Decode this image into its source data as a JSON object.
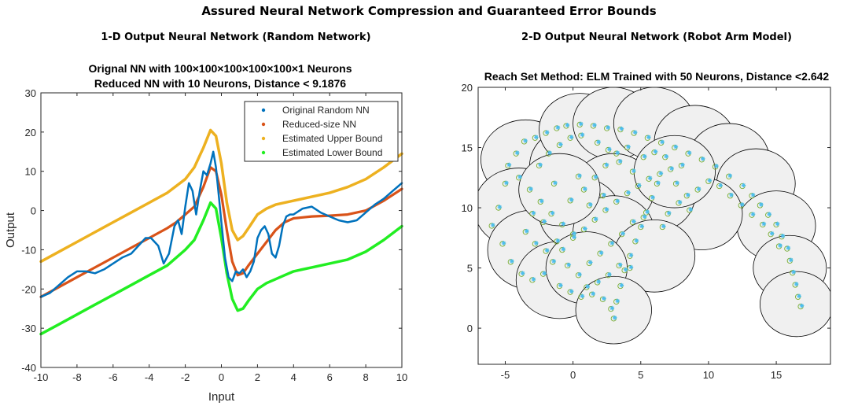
{
  "page": {
    "title": "Assured Neural Network Compression and Guaranteed Error Bounds"
  },
  "panels": [
    {
      "heading": "1-D Output Neural Network (Random Network)",
      "title_line1": "Orignal NN with 100×100×100×100×100×1 Neurons",
      "title_line2": "Reduced NN with 10 Neurons, Distance < 9.1876"
    },
    {
      "heading": "2-D Output Neural Network (Robot Arm Model)",
      "title_line1": "Reach Set Method: ELM Trained with 50 Neurons, Distance <2.642"
    }
  ],
  "chart_data": [
    {
      "type": "line",
      "xlabel": "Input",
      "ylabel": "Output",
      "xlim": [
        -10,
        10
      ],
      "ylim": [
        -40,
        30
      ],
      "xticks": [
        -10,
        -8,
        -6,
        -4,
        -2,
        0,
        2,
        4,
        6,
        8,
        10
      ],
      "yticks": [
        -40,
        -30,
        -20,
        -10,
        0,
        10,
        20,
        30
      ],
      "legend_position": "top-right",
      "colors": {
        "Original Random NN": "#0072BD",
        "Reduced-size NN": "#D95319",
        "Estimated Upper Bound": "#EDB120",
        "Estimated Lower Bound": "#22EE22"
      },
      "series": [
        {
          "name": "Estimated Upper Bound",
          "x": [
            -10,
            -9,
            -8,
            -7,
            -6,
            -5,
            -4,
            -3,
            -2,
            -1.5,
            -1,
            -0.6,
            -0.3,
            0,
            0.3,
            0.6,
            0.9,
            1.2,
            1.5,
            2,
            2.5,
            3,
            3.5,
            4,
            5,
            6,
            7,
            8,
            9,
            10
          ],
          "y": [
            -13,
            -10.5,
            -8,
            -5.5,
            -3,
            -0.5,
            2,
            4.5,
            8,
            11,
            16,
            20.5,
            19,
            12,
            2,
            -5,
            -7.5,
            -6.5,
            -4.5,
            -1,
            0.5,
            1.5,
            2,
            2.5,
            3.5,
            4.5,
            6,
            8,
            11,
            14.5
          ]
        },
        {
          "name": "Estimated Lower Bound",
          "x": [
            -10,
            -9,
            -8,
            -7,
            -6,
            -5,
            -4,
            -3,
            -2,
            -1.5,
            -1,
            -0.6,
            -0.3,
            0,
            0.3,
            0.6,
            0.9,
            1.2,
            1.5,
            2,
            2.5,
            3,
            3.5,
            4,
            5,
            6,
            7,
            8,
            9,
            10
          ],
          "y": [
            -31.5,
            -29,
            -26.5,
            -24,
            -21.5,
            -19,
            -16.5,
            -14,
            -10,
            -7.5,
            -2.5,
            2,
            0.5,
            -7,
            -16,
            -22.5,
            -25.5,
            -25,
            -23,
            -20,
            -18.5,
            -17.5,
            -16.5,
            -15.5,
            -14.5,
            -13.5,
            -12.5,
            -10.5,
            -7.5,
            -4
          ]
        },
        {
          "name": "Reduced-size NN",
          "x": [
            -10,
            -9,
            -8,
            -7,
            -6,
            -5,
            -4,
            -3,
            -2.5,
            -2,
            -1.5,
            -1,
            -0.6,
            -0.3,
            0,
            0.3,
            0.6,
            0.9,
            1.2,
            1.5,
            2,
            2.5,
            3,
            3.5,
            4,
            5,
            6,
            7,
            8,
            9,
            10
          ],
          "y": [
            -22,
            -19.5,
            -17,
            -14.5,
            -12,
            -9.5,
            -7,
            -4.5,
            -3,
            -1,
            1,
            6,
            11,
            10,
            4,
            -5,
            -13,
            -16.5,
            -16,
            -14,
            -11,
            -8,
            -5,
            -3,
            -2,
            -1.5,
            -1.3,
            -1,
            0,
            2.5,
            5.5
          ]
        },
        {
          "name": "Original Random NN",
          "x": [
            -10,
            -9.5,
            -9,
            -8.5,
            -8,
            -7.5,
            -7,
            -6.5,
            -6,
            -5.5,
            -5,
            -4.5,
            -4.2,
            -3.9,
            -3.5,
            -3.2,
            -2.9,
            -2.6,
            -2.4,
            -2.2,
            -2,
            -1.8,
            -1.6,
            -1.4,
            -1.2,
            -1,
            -0.8,
            -0.6,
            -0.45,
            -0.3,
            -0.15,
            0,
            0.2,
            0.4,
            0.6,
            0.8,
            1,
            1.2,
            1.4,
            1.6,
            1.8,
            2,
            2.2,
            2.4,
            2.6,
            2.8,
            3,
            3.2,
            3.4,
            3.6,
            3.8,
            4,
            4.5,
            5,
            5.5,
            6,
            6.5,
            7,
            7.5,
            8,
            8.5,
            9,
            9.5,
            10
          ],
          "y": [
            -22,
            -21,
            -19,
            -17,
            -15.5,
            -15.5,
            -16,
            -15,
            -13.5,
            -12,
            -11,
            -8.5,
            -7,
            -7,
            -9,
            -13.5,
            -11,
            -4,
            -2.5,
            -6,
            1,
            7,
            5,
            -1,
            5,
            10,
            9,
            12,
            15,
            11,
            4,
            -3,
            -12,
            -17,
            -18,
            -15.5,
            -16,
            -15,
            -17,
            -15.5,
            -13,
            -7,
            -5,
            -4,
            -6,
            -11,
            -12,
            -9,
            -4,
            -1.5,
            -1,
            -1,
            0.5,
            1,
            -0.5,
            -1.5,
            -2.5,
            -3,
            -2.5,
            -0.5,
            1.5,
            3,
            5,
            7
          ]
        }
      ]
    },
    {
      "type": "scatter",
      "xlim": [
        -7,
        19
      ],
      "ylim": [
        -3,
        20
      ],
      "xticks": [
        -5,
        0,
        5,
        10,
        15
      ],
      "yticks": [
        0,
        5,
        10,
        15,
        20
      ],
      "colors": {
        "circles_fill": "#F0F0F0",
        "circles_edge": "#000000",
        "samples_edge": "#77AC30",
        "samples_star": "#4DBEEE"
      },
      "reach_set_circles": [
        {
          "x": -3.5,
          "y": 14,
          "r": 3.3
        },
        {
          "x": -4,
          "y": 10,
          "r": 3.3
        },
        {
          "x": -3,
          "y": 6.5,
          "r": 3.3
        },
        {
          "x": -1,
          "y": 4,
          "r": 3.2
        },
        {
          "x": 0,
          "y": 13.5,
          "r": 3.2
        },
        {
          "x": 0.5,
          "y": 16.5,
          "r": 3
        },
        {
          "x": 3,
          "y": 17,
          "r": 3
        },
        {
          "x": 6,
          "y": 17,
          "r": 3
        },
        {
          "x": 9,
          "y": 15.5,
          "r": 3
        },
        {
          "x": 11.5,
          "y": 14,
          "r": 3
        },
        {
          "x": 13.5,
          "y": 12,
          "r": 2.9
        },
        {
          "x": 15,
          "y": 8.5,
          "r": 2.9
        },
        {
          "x": 16,
          "y": 5,
          "r": 2.7
        },
        {
          "x": 16.5,
          "y": 2,
          "r": 2.7
        },
        {
          "x": 9.5,
          "y": 9.5,
          "r": 3
        },
        {
          "x": 6,
          "y": 11,
          "r": 3
        },
        {
          "x": 3,
          "y": 11.5,
          "r": 3
        },
        {
          "x": 0.5,
          "y": 9.5,
          "r": 3
        },
        {
          "x": 3,
          "y": 8,
          "r": 3
        },
        {
          "x": 6,
          "y": 6,
          "r": 3
        },
        {
          "x": 1,
          "y": 5,
          "r": 3
        },
        {
          "x": 3,
          "y": 1.5,
          "r": 2.8
        },
        {
          "x": 7.5,
          "y": 13,
          "r": 3
        },
        {
          "x": -1,
          "y": 11.5,
          "r": 3
        }
      ],
      "sample_points": [
        [
          -6,
          8.5
        ],
        [
          -5.5,
          10
        ],
        [
          -5,
          12
        ],
        [
          -4.8,
          13.5
        ],
        [
          -4.2,
          14.5
        ],
        [
          -3.6,
          15.5
        ],
        [
          -2.8,
          15.8
        ],
        [
          -2,
          16.2
        ],
        [
          -1.2,
          16.6
        ],
        [
          -0.5,
          16.8
        ],
        [
          0.5,
          16.9
        ],
        [
          1.5,
          16.8
        ],
        [
          2.5,
          16.6
        ],
        [
          3.5,
          16.5
        ],
        [
          4.5,
          16.2
        ],
        [
          5.5,
          15.8
        ],
        [
          6.5,
          15.4
        ],
        [
          7.5,
          15
        ],
        [
          8.5,
          14.5
        ],
        [
          9.5,
          14
        ],
        [
          10.5,
          13.4
        ],
        [
          11.5,
          12.6
        ],
        [
          12.5,
          11.8
        ],
        [
          13.2,
          11
        ],
        [
          13.8,
          10.2
        ],
        [
          14.4,
          9.4
        ],
        [
          15,
          8.6
        ],
        [
          15.4,
          7.6
        ],
        [
          15.8,
          6.6
        ],
        [
          16,
          5.6
        ],
        [
          16.2,
          4.6
        ],
        [
          16.4,
          3.6
        ],
        [
          16.6,
          2.6
        ],
        [
          16.8,
          1.8
        ],
        [
          -5.2,
          7
        ],
        [
          -4.6,
          5.5
        ],
        [
          -3.8,
          4.5
        ],
        [
          -3,
          4
        ],
        [
          -2.2,
          4.5
        ],
        [
          -1.5,
          5.5
        ],
        [
          -0.8,
          6.5
        ],
        [
          0,
          7.5
        ],
        [
          0.8,
          8.2
        ],
        [
          1.6,
          9
        ],
        [
          2.4,
          9.8
        ],
        [
          3.2,
          10.5
        ],
        [
          4,
          11.2
        ],
        [
          4.8,
          11.8
        ],
        [
          5.6,
          12.4
        ],
        [
          6.4,
          12.8
        ],
        [
          7.2,
          13.2
        ],
        [
          8,
          13.5
        ],
        [
          -1,
          3.5
        ],
        [
          -0.2,
          3
        ],
        [
          0.6,
          2.6
        ],
        [
          1.4,
          2.8
        ],
        [
          2.2,
          2.4
        ],
        [
          2.8,
          1.6
        ],
        [
          3,
          0.8
        ],
        [
          3.2,
          2.2
        ],
        [
          3.5,
          3.5
        ],
        [
          3.8,
          4.8
        ],
        [
          4.2,
          6
        ],
        [
          4.6,
          7.2
        ],
        [
          5,
          8.4
        ],
        [
          5.4,
          9.6
        ],
        [
          5.8,
          10.8
        ],
        [
          6.2,
          12
        ],
        [
          -4,
          12.5
        ],
        [
          -3.2,
          11.5
        ],
        [
          -2.4,
          10.5
        ],
        [
          -1.6,
          9.5
        ],
        [
          -0.8,
          8.6
        ],
        [
          0,
          7.8
        ],
        [
          0.8,
          11.5
        ],
        [
          1.6,
          12.5
        ],
        [
          2.4,
          13.5
        ],
        [
          3.2,
          14.5
        ],
        [
          4,
          15
        ],
        [
          -2.5,
          13.5
        ],
        [
          -1.8,
          14.5
        ],
        [
          -1,
          15.2
        ],
        [
          -0.2,
          15.8
        ],
        [
          0.6,
          16
        ],
        [
          1.8,
          15.4
        ],
        [
          2.6,
          14.8
        ],
        [
          3.4,
          13.8
        ],
        [
          4.4,
          13
        ],
        [
          5.2,
          14.2
        ],
        [
          6,
          14.6
        ],
        [
          6.8,
          14.2
        ],
        [
          7.6,
          12
        ],
        [
          8.4,
          11
        ],
        [
          9.2,
          11.5
        ],
        [
          10,
          12.2
        ],
        [
          10.8,
          11.8
        ],
        [
          11.6,
          11
        ],
        [
          12.4,
          10.2
        ],
        [
          13.2,
          9.4
        ],
        [
          14,
          8.6
        ],
        [
          14.6,
          7.8
        ],
        [
          15.2,
          6.8
        ],
        [
          -3.5,
          8
        ],
        [
          -2.8,
          7
        ],
        [
          -2,
          6.4
        ],
        [
          -1.2,
          7.2
        ],
        [
          -0.4,
          5.2
        ],
        [
          0.4,
          4.4
        ],
        [
          1.2,
          5.4
        ],
        [
          2,
          6.2
        ],
        [
          2.8,
          7
        ],
        [
          3.6,
          7.8
        ],
        [
          4.4,
          8.8
        ],
        [
          5.2,
          9.2
        ],
        [
          -3,
          9.5
        ],
        [
          -2.2,
          8.8
        ],
        [
          1,
          3.4
        ],
        [
          1.8,
          3.8
        ],
        [
          2.6,
          4.4
        ],
        [
          3.4,
          5.2
        ],
        [
          4.2,
          5
        ],
        [
          7,
          9.5
        ],
        [
          7.8,
          10.4
        ],
        [
          8.6,
          9.8
        ],
        [
          6.6,
          8.4
        ],
        [
          2.2,
          11
        ],
        [
          1.2,
          10.2
        ],
        [
          -0.2,
          10.6
        ],
        [
          0.4,
          12.6
        ],
        [
          -1.4,
          12
        ]
      ]
    }
  ]
}
